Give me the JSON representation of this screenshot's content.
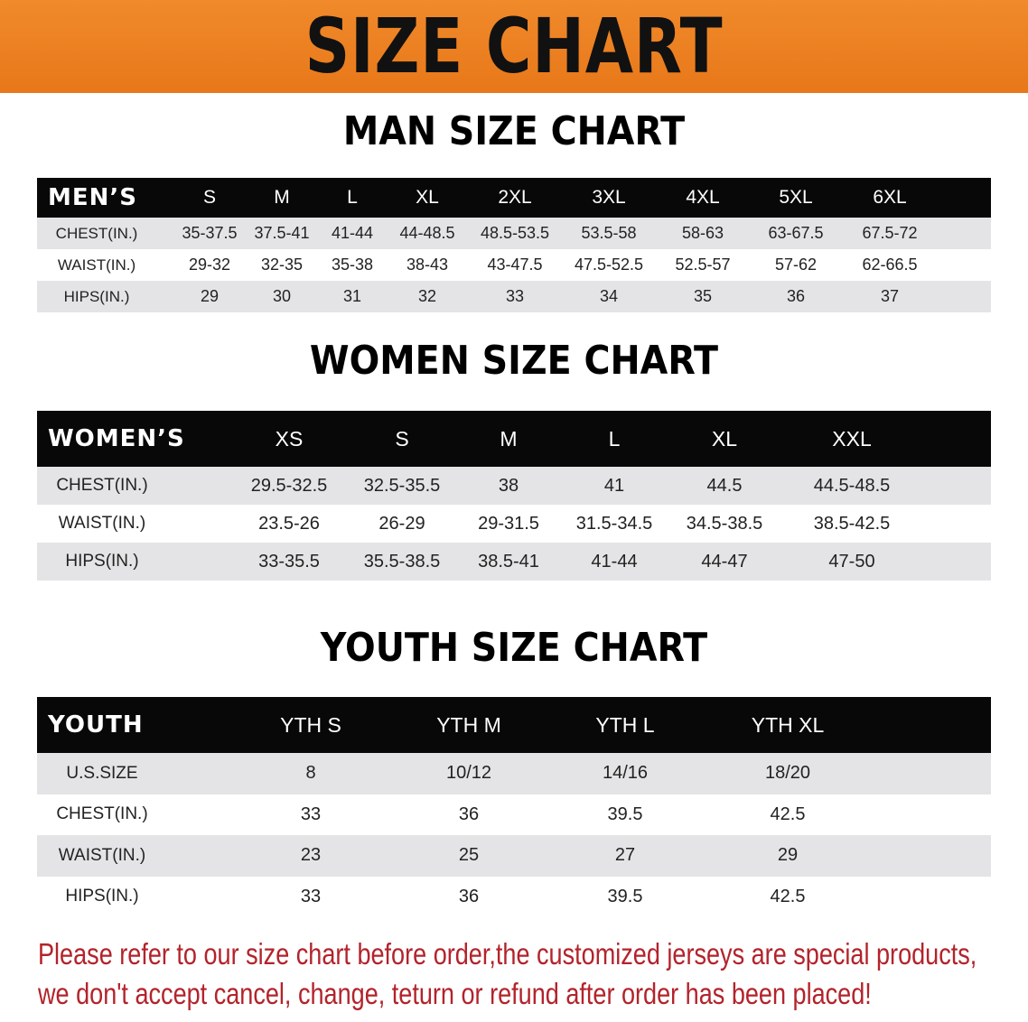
{
  "banner_title": "SIZE CHART",
  "colors": {
    "banner": "#ee7f22",
    "header_row": "#080808",
    "stripe": "#e4e4e6",
    "note": "#b3232b"
  },
  "men": {
    "title": "MAN SIZE CHART",
    "header": [
      "MEN’S",
      "S",
      "M",
      "L",
      "XL",
      "2XL",
      "3XL",
      "4XL",
      "5XL",
      "6XL"
    ],
    "rows": [
      [
        "CHEST(IN.)",
        "35-37.5",
        "37.5-41",
        "41-44",
        "44-48.5",
        "48.5-53.5",
        "53.5-58",
        "58-63",
        "63-67.5",
        "67.5-72"
      ],
      [
        "WAIST(IN.)",
        "29-32",
        "32-35",
        "35-38",
        "38-43",
        "43-47.5",
        "47.5-52.5",
        "52.5-57",
        "57-62",
        "62-66.5"
      ],
      [
        "HIPS(IN.)",
        "29",
        "30",
        "31",
        "32",
        "33",
        "34",
        "35",
        "36",
        "37"
      ]
    ]
  },
  "women": {
    "title": "WOMEN SIZE CHART",
    "header": [
      "WOMEN’S",
      "XS",
      "S",
      "M",
      "L",
      "XL",
      "XXL"
    ],
    "rows": [
      [
        "CHEST(IN.)",
        "29.5-32.5",
        "32.5-35.5",
        "38",
        "41",
        "44.5",
        "44.5-48.5"
      ],
      [
        "WAIST(IN.)",
        "23.5-26",
        "26-29",
        "29-31.5",
        "31.5-34.5",
        "34.5-38.5",
        "38.5-42.5"
      ],
      [
        "HIPS(IN.)",
        "33-35.5",
        "35.5-38.5",
        "38.5-41",
        "41-44",
        "44-47",
        "47-50"
      ]
    ]
  },
  "youth": {
    "title": "YOUTH SIZE CHART",
    "header": [
      "YOUTH",
      "YTH S",
      "YTH M",
      "YTH L",
      "YTH XL"
    ],
    "rows": [
      [
        "U.S.SIZE",
        "8",
        "10/12",
        "14/16",
        "18/20"
      ],
      [
        "CHEST(IN.)",
        "33",
        "36",
        "39.5",
        "42.5"
      ],
      [
        "WAIST(IN.)",
        "23",
        "25",
        "27",
        "29"
      ],
      [
        "HIPS(IN.)",
        "33",
        "36",
        "39.5",
        "42.5"
      ]
    ]
  },
  "note": {
    "line1": "Please refer to our size chart before order,the customized jerseys are special products,",
    "line2": "we don't accept cancel, change, teturn or refund after order has been placed!"
  }
}
